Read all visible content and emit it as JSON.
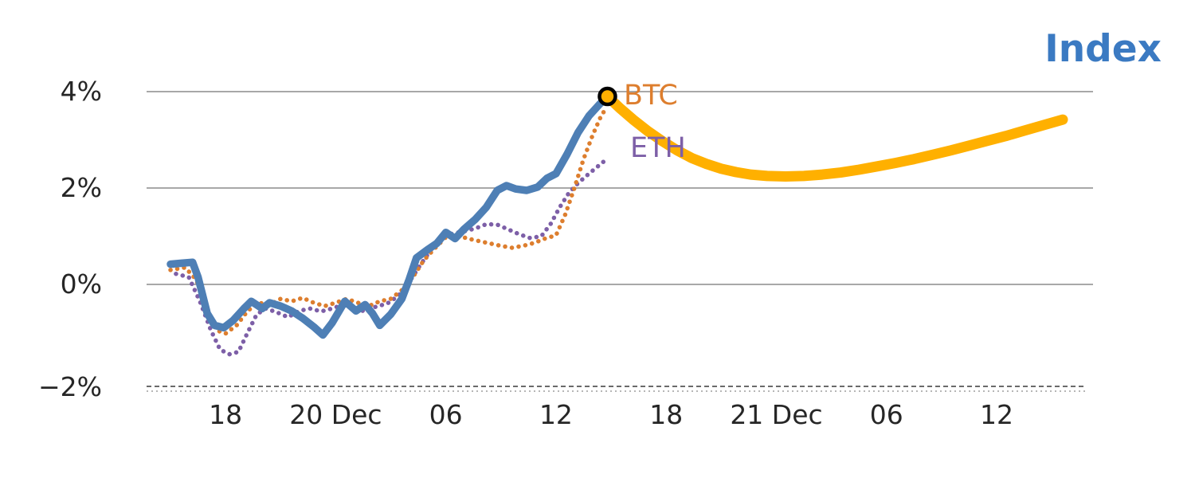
{
  "title": "Index",
  "series_labels": {
    "btc": "BTC",
    "eth": "ETH"
  },
  "colors": {
    "index": "#4e7fb5",
    "forecast": "#ffb000",
    "btc": "#dd7e2e",
    "eth": "#7d5fa7",
    "grid": "#8c8c8c",
    "axis": "#555555",
    "text": "#262626",
    "title": "#3b7ac2",
    "marker_stroke": "#000000",
    "marker_fill": "#ffb000"
  },
  "chart_data": {
    "type": "line",
    "title": "Index",
    "x_unit": "hours (ticks every 6h across 19 Dec 18:00 - 21 Dec 12:00)",
    "xlim_hours": [
      0,
      48.6
    ],
    "ylim": [
      -2.3,
      4.6
    ],
    "grid": "horizontal",
    "x_ticks": [
      {
        "h": 3,
        "label": "18"
      },
      {
        "h": 9,
        "label": "20 Dec"
      },
      {
        "h": 15,
        "label": "06"
      },
      {
        "h": 21,
        "label": "12"
      },
      {
        "h": 27,
        "label": "18"
      },
      {
        "h": 33,
        "label": "21 Dec"
      },
      {
        "h": 39,
        "label": "06"
      },
      {
        "h": 45,
        "label": "12"
      }
    ],
    "y_ticks": [
      {
        "v": 4,
        "label": "4%"
      },
      {
        "v": 2,
        "label": "2%"
      },
      {
        "v": 0,
        "label": "0%"
      },
      {
        "v": -2,
        "label": "−2%"
      }
    ],
    "series": [
      {
        "name": "ETH",
        "color_key": "eth",
        "style": "dotted",
        "width": 5.5,
        "points": [
          [
            0.3,
            0.22
          ],
          [
            1.0,
            0.15
          ],
          [
            1.6,
            -0.35
          ],
          [
            2.2,
            -0.95
          ],
          [
            2.7,
            -1.35
          ],
          [
            3.2,
            -1.45
          ],
          [
            3.7,
            -1.4
          ],
          [
            4.2,
            -1.0
          ],
          [
            4.7,
            -0.62
          ],
          [
            5.2,
            -0.5
          ],
          [
            5.8,
            -0.58
          ],
          [
            6.4,
            -0.68
          ],
          [
            7.0,
            -0.55
          ],
          [
            7.6,
            -0.5
          ],
          [
            8.2,
            -0.56
          ],
          [
            8.8,
            -0.5
          ],
          [
            9.4,
            -0.42
          ],
          [
            10.0,
            -0.5
          ],
          [
            10.6,
            -0.56
          ],
          [
            11.2,
            -0.46
          ],
          [
            11.8,
            -0.4
          ],
          [
            12.4,
            -0.24
          ],
          [
            13.0,
            0.05
          ],
          [
            13.6,
            0.4
          ],
          [
            14.2,
            0.72
          ],
          [
            14.8,
            1.0
          ],
          [
            15.4,
            1.06
          ],
          [
            16.0,
            1.1
          ],
          [
            16.6,
            1.16
          ],
          [
            17.2,
            1.25
          ],
          [
            17.8,
            1.24
          ],
          [
            18.4,
            1.14
          ],
          [
            19.0,
            1.04
          ],
          [
            19.6,
            0.96
          ],
          [
            20.2,
            1.0
          ],
          [
            20.7,
            1.25
          ],
          [
            21.2,
            1.6
          ],
          [
            21.7,
            1.9
          ],
          [
            22.2,
            2.1
          ],
          [
            22.8,
            2.3
          ],
          [
            23.6,
            2.55
          ]
        ]
      },
      {
        "name": "BTC",
        "color_key": "btc",
        "style": "dotted",
        "width": 5.5,
        "points": [
          [
            0,
            0.3
          ],
          [
            0.8,
            0.35
          ],
          [
            1.4,
            0.1
          ],
          [
            2.0,
            -0.55
          ],
          [
            2.5,
            -0.95
          ],
          [
            3.0,
            -1.02
          ],
          [
            3.6,
            -0.85
          ],
          [
            4.2,
            -0.55
          ],
          [
            4.8,
            -0.38
          ],
          [
            5.4,
            -0.42
          ],
          [
            6.0,
            -0.3
          ],
          [
            6.6,
            -0.35
          ],
          [
            7.2,
            -0.28
          ],
          [
            7.8,
            -0.38
          ],
          [
            8.4,
            -0.45
          ],
          [
            9.0,
            -0.38
          ],
          [
            9.6,
            -0.3
          ],
          [
            10.2,
            -0.38
          ],
          [
            10.8,
            -0.45
          ],
          [
            11.4,
            -0.35
          ],
          [
            12.0,
            -0.3
          ],
          [
            12.6,
            -0.12
          ],
          [
            13.2,
            0.15
          ],
          [
            13.8,
            0.5
          ],
          [
            14.4,
            0.75
          ],
          [
            15.0,
            0.98
          ],
          [
            15.6,
            1.02
          ],
          [
            16.2,
            0.95
          ],
          [
            16.8,
            0.9
          ],
          [
            17.4,
            0.85
          ],
          [
            18.0,
            0.8
          ],
          [
            18.6,
            0.76
          ],
          [
            19.2,
            0.8
          ],
          [
            19.8,
            0.86
          ],
          [
            20.4,
            0.95
          ],
          [
            21.0,
            1.02
          ],
          [
            21.5,
            1.45
          ],
          [
            22.0,
            2.0
          ],
          [
            22.5,
            2.6
          ],
          [
            23.0,
            3.1
          ],
          [
            23.4,
            3.45
          ],
          [
            23.7,
            3.65
          ]
        ]
      },
      {
        "name": "Index (history)",
        "color_key": "index",
        "style": "solid",
        "width": 9.5,
        "points": [
          [
            0,
            0.42
          ],
          [
            0.6,
            0.44
          ],
          [
            1.2,
            0.46
          ],
          [
            1.5,
            0.15
          ],
          [
            2.0,
            -0.6
          ],
          [
            2.4,
            -0.85
          ],
          [
            2.9,
            -0.9
          ],
          [
            3.4,
            -0.75
          ],
          [
            4.0,
            -0.5
          ],
          [
            4.4,
            -0.35
          ],
          [
            5.0,
            -0.5
          ],
          [
            5.4,
            -0.38
          ],
          [
            6.0,
            -0.45
          ],
          [
            6.6,
            -0.55
          ],
          [
            7.2,
            -0.7
          ],
          [
            7.8,
            -0.88
          ],
          [
            8.3,
            -1.05
          ],
          [
            8.8,
            -0.8
          ],
          [
            9.5,
            -0.35
          ],
          [
            10.1,
            -0.55
          ],
          [
            10.6,
            -0.42
          ],
          [
            11.0,
            -0.6
          ],
          [
            11.4,
            -0.85
          ],
          [
            12.0,
            -0.62
          ],
          [
            12.6,
            -0.3
          ],
          [
            13.0,
            0.1
          ],
          [
            13.4,
            0.55
          ],
          [
            14.0,
            0.72
          ],
          [
            14.5,
            0.85
          ],
          [
            15.0,
            1.08
          ],
          [
            15.5,
            0.95
          ],
          [
            16.0,
            1.15
          ],
          [
            16.6,
            1.35
          ],
          [
            17.2,
            1.6
          ],
          [
            17.8,
            1.95
          ],
          [
            18.3,
            2.05
          ],
          [
            18.8,
            1.98
          ],
          [
            19.4,
            1.95
          ],
          [
            20.0,
            2.02
          ],
          [
            20.5,
            2.2
          ],
          [
            21.0,
            2.3
          ],
          [
            21.6,
            2.7
          ],
          [
            22.2,
            3.15
          ],
          [
            22.8,
            3.5
          ],
          [
            23.4,
            3.75
          ],
          [
            23.8,
            3.9
          ]
        ]
      },
      {
        "name": "Index (forecast)",
        "color_key": "forecast",
        "style": "solid",
        "width": 13,
        "points": [
          [
            23.8,
            3.9
          ],
          [
            24.5,
            3.65
          ],
          [
            25.2,
            3.42
          ],
          [
            26.0,
            3.18
          ],
          [
            26.8,
            2.97
          ],
          [
            27.6,
            2.78
          ],
          [
            28.4,
            2.62
          ],
          [
            29.2,
            2.5
          ],
          [
            30.0,
            2.4
          ],
          [
            30.8,
            2.33
          ],
          [
            31.6,
            2.28
          ],
          [
            32.5,
            2.25
          ],
          [
            33.5,
            2.24
          ],
          [
            34.5,
            2.25
          ],
          [
            35.5,
            2.28
          ],
          [
            36.5,
            2.32
          ],
          [
            37.5,
            2.38
          ],
          [
            38.5,
            2.45
          ],
          [
            39.5,
            2.52
          ],
          [
            40.5,
            2.6
          ],
          [
            41.5,
            2.69
          ],
          [
            42.5,
            2.78
          ],
          [
            43.5,
            2.88
          ],
          [
            44.5,
            2.98
          ],
          [
            45.5,
            3.08
          ],
          [
            46.5,
            3.19
          ],
          [
            47.5,
            3.3
          ],
          [
            48.6,
            3.42
          ]
        ]
      }
    ],
    "marker": {
      "h": 23.8,
      "v": 3.9,
      "shape": "open-circle",
      "radius": 10
    }
  }
}
